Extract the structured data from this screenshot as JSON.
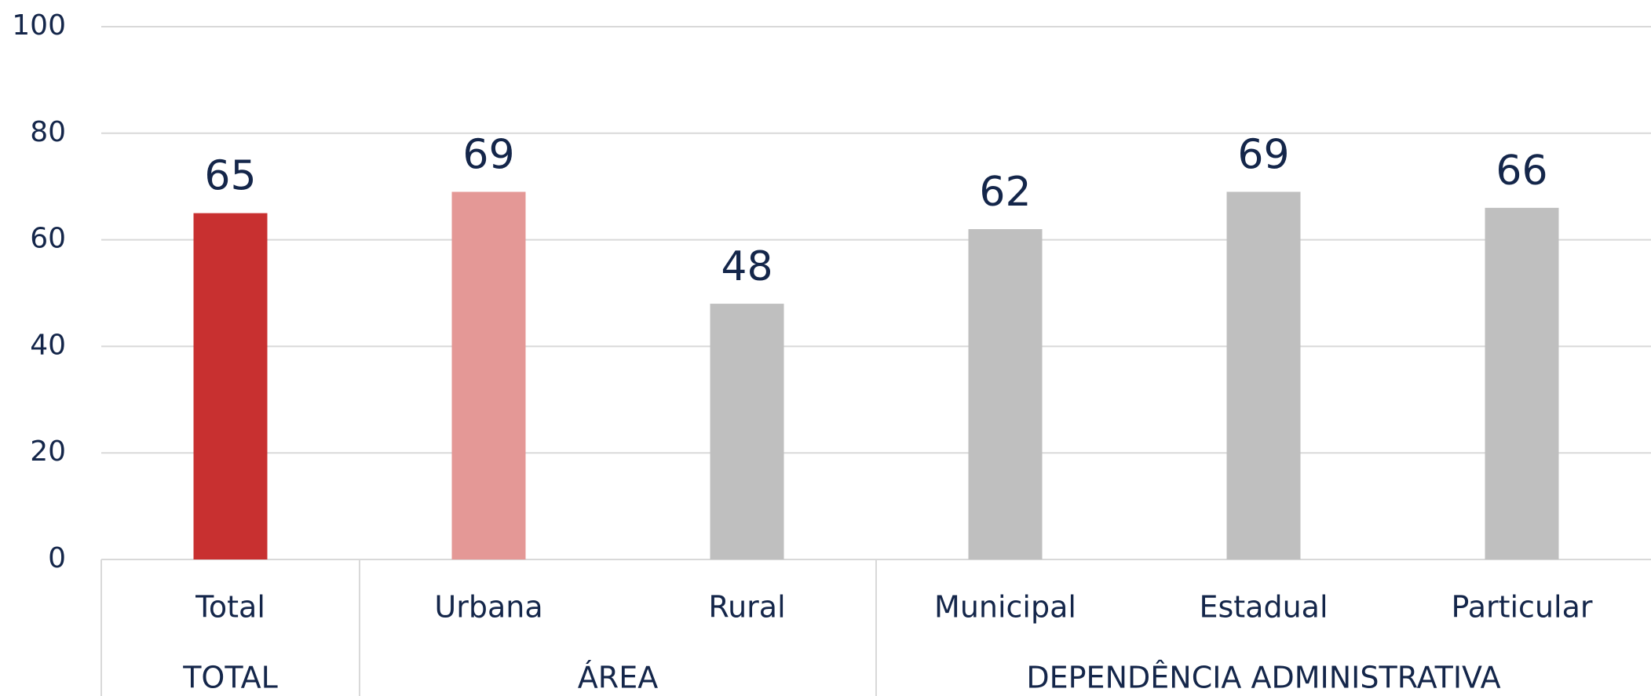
{
  "chart_data": {
    "type": "bar",
    "groups": [
      {
        "name": "TOTAL",
        "categories": [
          "Total"
        ],
        "values": [
          65
        ],
        "colors": [
          "#c83030"
        ]
      },
      {
        "name": "ÁREA",
        "categories": [
          "Urbana",
          "Rural"
        ],
        "values": [
          69,
          48
        ],
        "colors": [
          "#e49896",
          "#bfbfbf"
        ]
      },
      {
        "name": "DEPENDÊNCIA ADMINISTRATIVA",
        "categories": [
          "Municipal",
          "Estadual",
          "Particular"
        ],
        "values": [
          62,
          69,
          66
        ],
        "colors": [
          "#bfbfbf",
          "#bfbfbf",
          "#bfbfbf"
        ]
      }
    ],
    "ylim": [
      0,
      100
    ],
    "yticks": [
      0,
      20,
      40,
      60,
      80,
      100
    ],
    "grid": true
  }
}
